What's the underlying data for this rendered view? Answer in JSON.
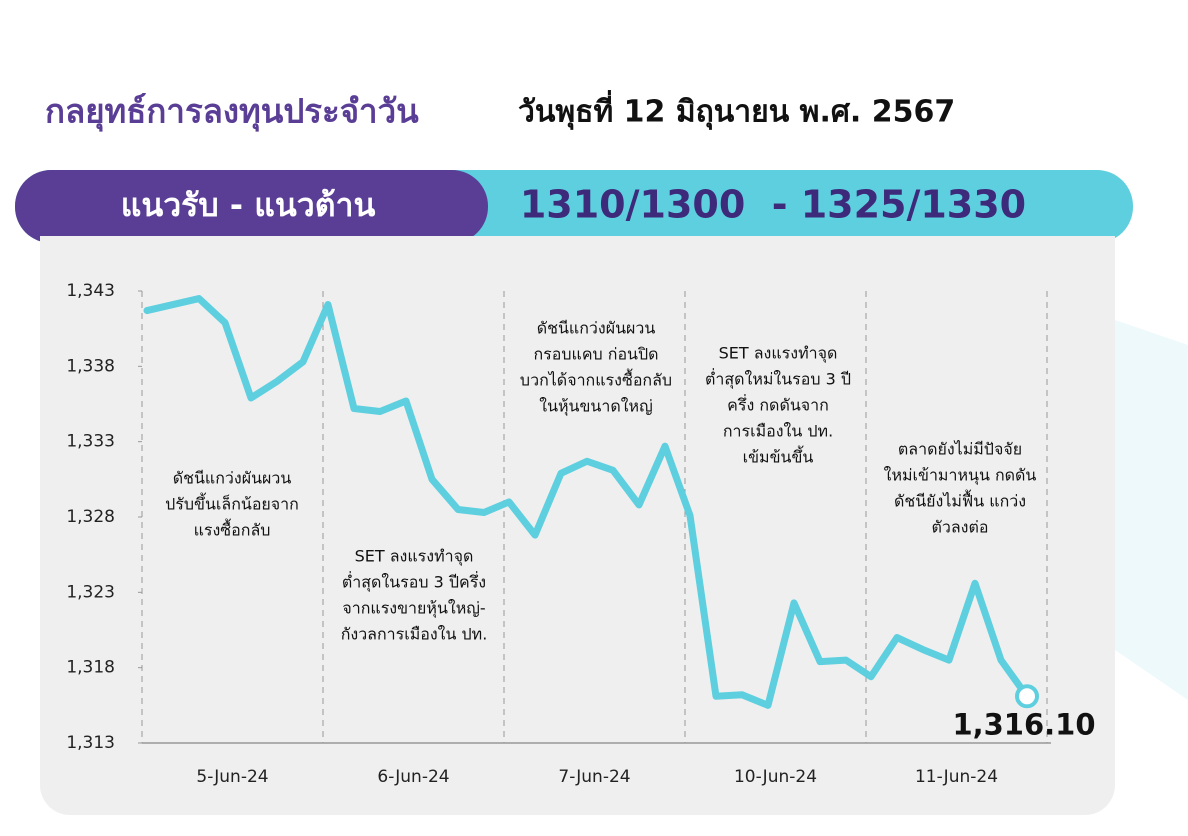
{
  "header": {
    "title": "กลยุทธ์การลงทุนประจำวัน",
    "date": "วันพุธที่ 12 มิถุนายน พ.ศ. 2567",
    "banner_label": "แนวรับ - แนวต้าน",
    "banner_levels": "1310/1300  - 1325/1330"
  },
  "chart_data": {
    "type": "line",
    "color": "#5dcfdf",
    "categories": [
      "5-Jun-24",
      "6-Jun-24",
      "7-Jun-24",
      "10-Jun-24",
      "11-Jun-24"
    ],
    "values": [
      [
        1341.7,
        1342.1,
        1342.5,
        1340.9,
        1335.9,
        1337.0,
        1338.3
      ],
      [
        1342.1,
        1335.2,
        1335.0,
        1335.7,
        1330.5,
        1328.5,
        1328.3
      ],
      [
        1329.0,
        1326.8,
        1330.9,
        1331.7,
        1331.1,
        1328.8,
        1332.7
      ],
      [
        1328.1,
        1316.1,
        1316.2,
        1315.5,
        1322.3,
        1318.4,
        1318.5
      ],
      [
        1317.4,
        1320.0,
        1319.2,
        1318.5,
        1323.6,
        1318.5,
        1316.1
      ]
    ],
    "value_labels": [
      [
        null,
        null,
        null,
        null,
        null,
        null,
        null
      ],
      [
        null,
        null,
        null,
        null,
        null,
        null,
        null
      ],
      [
        null,
        null,
        null,
        null,
        null,
        null,
        null
      ],
      [
        null,
        null,
        null,
        null,
        null,
        null,
        null
      ],
      [
        null,
        null,
        null,
        null,
        null,
        null,
        "1,316.10"
      ]
    ],
    "ylim": [
      1313,
      1343
    ],
    "yticks": [
      {
        "value": 1313,
        "label": "1,313"
      },
      {
        "value": 1318,
        "label": "1,318"
      },
      {
        "value": 1323,
        "label": "1,323"
      },
      {
        "value": 1328,
        "label": "1,328"
      },
      {
        "value": 1333,
        "label": "1,333"
      },
      {
        "value": 1338,
        "label": "1,338"
      },
      {
        "value": 1343,
        "label": "1,343"
      }
    ],
    "annotations": [
      [
        "ดัชนีแกว่งผันผวน",
        "ปรับขึ้นเล็กน้อยจาก",
        "แรงซื้อกลับ"
      ],
      [
        "SET ลงแรงทำจุด",
        "ต่ำสุดในรอบ 3 ปีครึ่ง",
        "จากแรงขายหุ้นใหญ่-",
        "กังวลการเมืองใน ปท."
      ],
      [
        "ดัชนีแกว่งผันผวน",
        "กรอบแคบ ก่อนปิด",
        "บวกได้จากแรงซื้อกลับ",
        "ในหุ้นขนาดใหญ่"
      ],
      [
        "SET ลงแรงทำจุด",
        "ต่ำสุดใหม่ในรอบ 3 ปี",
        "ครึ่ง กดดันจาก",
        "การเมืองใน ปท.",
        "เข้มข้นขึ้น"
      ],
      [
        "ตลาดยังไม่มีปัจจัย",
        "ใหม่เข้ามาหนุน กดดัน",
        "ดัชนียังไม่ฟื้น แกว่ง",
        "ตัวลงต่อ"
      ]
    ]
  }
}
